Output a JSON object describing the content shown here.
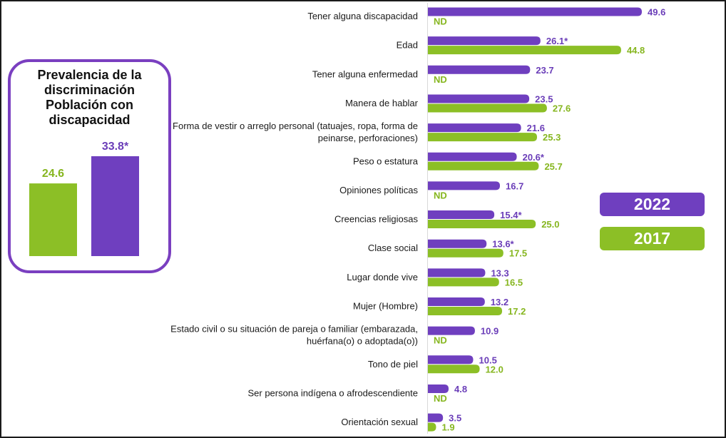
{
  "colors": {
    "series_2022": "#6f3fbf",
    "series_2017": "#8cbf26",
    "label_2022": "#6a3db8",
    "label_2017": "#86b61f"
  },
  "legend": {
    "label_2022": "2022",
    "label_2017": "2017"
  },
  "summary": {
    "title": "Prevalencia de la discriminación Población con discapacidad",
    "title_lines": [
      "Prevalencia de la",
      "discriminación",
      "Población con",
      "discapacidad"
    ]
  },
  "chart_data": [
    {
      "type": "bar",
      "orientation": "horizontal",
      "categories": [
        "Tener alguna discapacidad",
        "Edad",
        "Tener alguna enfermedad",
        "Manera de hablar",
        "Forma de vestir o arreglo personal (tatuajes, ropa, forma de peinarse, perforaciones)",
        "Peso o estatura",
        "Opiniones políticas",
        "Creencias religiosas",
        "Clase social",
        "Lugar donde vive",
        "Mujer (Hombre)",
        "Estado civil o su situación de pareja o familiar (embarazada, huérfana(o) o adoptada(o))",
        "Tono de piel",
        "Ser persona indígena o afrodescendiente",
        "Orientación sexual"
      ],
      "category_lines": [
        [
          "Tener alguna discapacidad"
        ],
        [
          "Edad"
        ],
        [
          "Tener alguna enfermedad"
        ],
        [
          "Manera de hablar"
        ],
        [
          "Forma de vestir o arreglo personal (tatuajes, ropa, forma de",
          "peinarse, perforaciones)"
        ],
        [
          "Peso o estatura"
        ],
        [
          "Opiniones políticas"
        ],
        [
          "Creencias religiosas"
        ],
        [
          "Clase social"
        ],
        [
          "Lugar donde vive"
        ],
        [
          "Mujer (Hombre)"
        ],
        [
          "Estado civil o su situación de pareja o familiar (embarazada,",
          "huérfana(o) o adoptada(o))"
        ],
        [
          "Tono de piel"
        ],
        [
          "Ser persona indígena o afrodescendiente"
        ],
        [
          "Orientación sexual"
        ]
      ],
      "series": [
        {
          "name": "2022",
          "values": [
            49.6,
            26.1,
            23.7,
            23.5,
            21.6,
            20.6,
            16.7,
            15.4,
            13.6,
            13.3,
            13.2,
            10.9,
            10.5,
            4.8,
            3.5
          ],
          "labels": [
            "49.6",
            "26.1*",
            "23.7",
            "23.5",
            "21.6",
            "20.6*",
            "16.7",
            "15.4*",
            "13.6*",
            "13.3",
            "13.2",
            "10.9",
            "10.5",
            "4.8",
            "3.5"
          ]
        },
        {
          "name": "2017",
          "values": [
            null,
            44.8,
            null,
            27.6,
            25.3,
            25.7,
            null,
            25.0,
            17.5,
            16.5,
            17.2,
            null,
            12.0,
            null,
            1.9
          ],
          "labels": [
            "ND",
            "44.8",
            "ND",
            "27.6",
            "25.3",
            "25.7",
            "ND",
            "25.0",
            "17.5",
            "16.5",
            "17.2",
            "ND",
            "12.0",
            "ND",
            "1.9"
          ]
        }
      ],
      "grid": false,
      "legend_position": "right"
    },
    {
      "type": "bar",
      "categories": [
        "2017",
        "2022"
      ],
      "values": [
        24.6,
        33.8
      ],
      "labels": [
        "24.6",
        "33.8*"
      ],
      "title": "Prevalencia de la discriminación Población con discapacidad",
      "grid": false
    }
  ]
}
